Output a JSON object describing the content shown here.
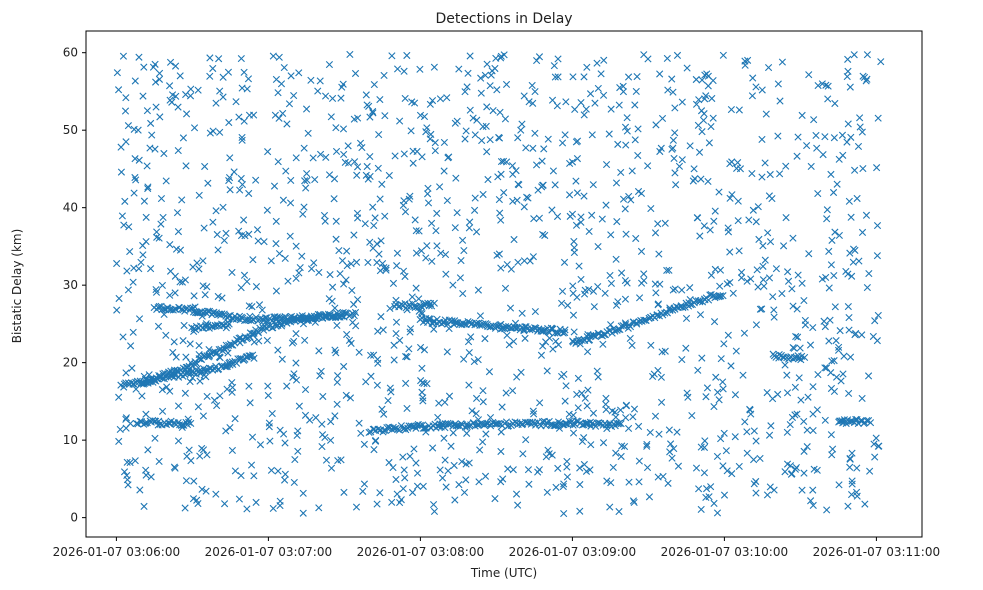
{
  "chart_data": {
    "type": "scatter",
    "title": "Detections in Delay",
    "xlabel": "Time (UTC)",
    "ylabel": "Bistatic Delay (km)",
    "x_is_time": true,
    "x_ticks": [
      "2026-01-07 03:06:00",
      "2026-01-07 03:07:00",
      "2026-01-07 03:08:00",
      "2026-01-07 03:09:00",
      "2026-01-07 03:10:00",
      "2026-01-07 03:11:00"
    ],
    "y_ticks": [
      0,
      10,
      20,
      30,
      40,
      50,
      60
    ],
    "xlim": [
      "2026-01-07 03:05:48",
      "2026-01-07 03:11:18"
    ],
    "ylim": [
      -2.5,
      62.8
    ],
    "grid": false,
    "marker": "x",
    "color": "#1f77b4",
    "series": [
      {
        "tracks": [
          {
            "x": [
              "2026-01-07 03:06:02",
              "2026-01-07 03:06:20",
              "2026-01-07 03:06:38",
              "2026-01-07 03:06:55"
            ],
            "y": [
              17.0,
              18.0,
              19.2,
              20.9
            ]
          },
          {
            "x": [
              "2026-01-07 03:06:15",
              "2026-01-07 03:06:30",
              "2026-01-07 03:06:45",
              "2026-01-07 03:07:00",
              "2026-01-07 03:07:15",
              "2026-01-07 03:07:35"
            ],
            "y": [
              27.0,
              26.8,
              25.8,
              25.6,
              25.8,
              26.3
            ]
          },
          {
            "x": [
              "2026-01-07 03:06:10",
              "2026-01-07 03:06:25",
              "2026-01-07 03:06:40",
              "2026-01-07 03:06:55",
              "2026-01-07 03:07:10",
              "2026-01-07 03:07:30"
            ],
            "y": [
              17.5,
              19.0,
              21.5,
              24.0,
              25.5,
              26.3
            ]
          },
          {
            "x": [
              "2026-01-07 03:06:08",
              "2026-01-07 03:06:20",
              "2026-01-07 03:06:30"
            ],
            "y": [
              12.3,
              12.2,
              12.0
            ]
          },
          {
            "x": [
              "2026-01-07 03:06:30",
              "2026-01-07 03:06:45"
            ],
            "y": [
              24.5,
              24.8
            ]
          },
          {
            "x": [
              "2026-01-07 03:08:00",
              "2026-01-07 03:08:20",
              "2026-01-07 03:08:40",
              "2026-01-07 03:08:58"
            ],
            "y": [
              25.5,
              25.0,
              24.4,
              24.0
            ]
          },
          {
            "x": [
              "2026-01-07 03:07:40",
              "2026-01-07 03:08:00",
              "2026-01-07 03:08:20",
              "2026-01-07 03:08:40",
              "2026-01-07 03:09:00",
              "2026-01-07 03:09:20"
            ],
            "y": [
              11.2,
              11.8,
              12.0,
              12.1,
              12.2,
              11.9
            ]
          },
          {
            "x": [
              "2026-01-07 03:09:00",
              "2026-01-07 03:09:20",
              "2026-01-07 03:09:40",
              "2026-01-07 03:10:00"
            ],
            "y": [
              22.5,
              24.5,
              27.0,
              29.0
            ]
          },
          {
            "x": [
              "2026-01-07 03:10:20",
              "2026-01-07 03:10:32"
            ],
            "y": [
              20.8,
              20.6
            ]
          },
          {
            "x": [
              "2026-01-07 03:10:45",
              "2026-01-07 03:10:58"
            ],
            "y": [
              12.3,
              12.5
            ]
          },
          {
            "x": [
              "2026-01-07 03:07:50",
              "2026-01-07 03:08:05"
            ],
            "y": [
              27.3,
              27.5
            ]
          }
        ],
        "noise_points": 1500,
        "noise_delay_range": [
          0.5,
          59.8
        ]
      }
    ]
  }
}
